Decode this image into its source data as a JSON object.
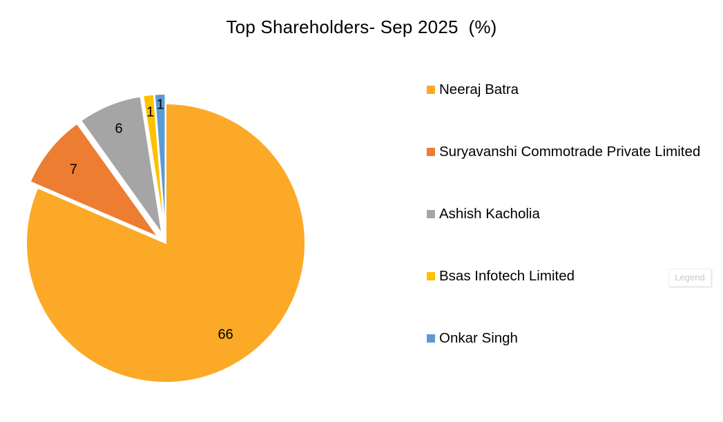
{
  "chart_data": {
    "type": "pie",
    "title": "Top Shareholders- Sep 2025  (%)",
    "slices": [
      {
        "label": "Neeraj Batra",
        "value": 66,
        "value_label": "66",
        "color": "#FBA927",
        "exploded": false
      },
      {
        "label": "Suryavanshi Commotrade Private Limited",
        "value": 7,
        "value_label": "7",
        "color": "#ED7D31",
        "exploded": true
      },
      {
        "label": "Ashish Kacholia",
        "value": 6,
        "value_label": "6",
        "color": "#A5A5A5",
        "exploded": true
      },
      {
        "label": "Bsas Infotech Limited",
        "value": 1,
        "value_label": "1",
        "color": "#FFC000",
        "exploded": true
      },
      {
        "label": "Onkar Singh",
        "value": 1,
        "value_label": "1",
        "color": "#5B9BD5",
        "exploded": true
      }
    ],
    "legend_position": "right"
  },
  "legend_tooltip": "Legend"
}
